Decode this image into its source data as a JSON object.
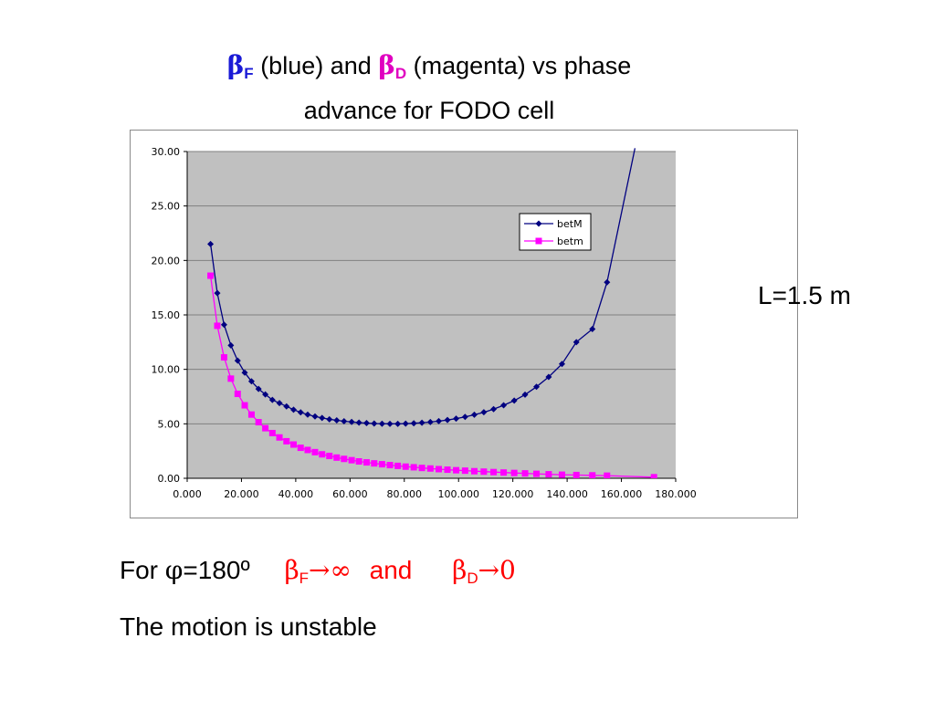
{
  "slide": {
    "title_beta_f_symbol": "β",
    "title_beta_f_sub": "F",
    "title_mid1": " (blue) and ",
    "title_beta_d_symbol": "β",
    "title_beta_d_sub": "D",
    "title_mid2": " (magenta) vs phase",
    "title_line2": "advance for FODO cell",
    "side_label": "L=1.5 m",
    "conclusion_prefix": "For ",
    "conclusion_phi": "φ",
    "conclusion_angle": "=180º",
    "conclusion_beta_f_symbol": "β",
    "conclusion_beta_f_sub": "F",
    "conclusion_beta_f_limit": "→∞",
    "conclusion_and": "and",
    "conclusion_beta_d_symbol": "β",
    "conclusion_beta_d_sub": "D",
    "conclusion_beta_d_limit": "→0",
    "statement": "The motion is unstable"
  },
  "colors": {
    "betM": "#000080",
    "betm": "#ff00ff",
    "plot_background": "#c0c0c0",
    "gridline": "#808080",
    "title_blue": "#1a1ad6",
    "title_magenta": "#e000c0",
    "conclusion_red": "#ff0000"
  },
  "chart_data": {
    "type": "line",
    "xlim": [
      0,
      180
    ],
    "ylim": [
      0,
      30
    ],
    "x_ticks": [
      "0.000",
      "20.000",
      "40.000",
      "60.000",
      "80.000",
      "100.000",
      "120.000",
      "140.000",
      "160.000",
      "180.000"
    ],
    "y_ticks": [
      "0.00",
      "5.00",
      "10.00",
      "15.00",
      "20.00",
      "25.00",
      "30.00"
    ],
    "grid": "horizontal",
    "legend_placement": "upper-right",
    "series": [
      {
        "name": "betM",
        "marker": "diamond",
        "x": [
          8.6,
          11.1,
          13.6,
          16.1,
          18.6,
          21.2,
          23.7,
          26.3,
          28.8,
          31.4,
          34.0,
          36.6,
          39.2,
          41.8,
          44.4,
          47.1,
          49.7,
          52.4,
          55.1,
          57.8,
          60.6,
          63.3,
          66.1,
          68.9,
          71.8,
          74.7,
          77.6,
          80.5,
          83.5,
          86.5,
          89.6,
          92.7,
          95.9,
          99.1,
          102.4,
          105.8,
          109.3,
          112.9,
          116.6,
          120.5,
          124.5,
          128.7,
          133.2,
          138.1,
          143.4,
          149.3,
          154.7,
          165.0
        ],
        "y": [
          21.5,
          17.0,
          14.1,
          12.2,
          10.8,
          9.7,
          8.9,
          8.2,
          7.7,
          7.2,
          6.9,
          6.6,
          6.3,
          6.05,
          5.85,
          5.68,
          5.54,
          5.42,
          5.32,
          5.24,
          5.17,
          5.11,
          5.07,
          5.03,
          5.01,
          5.0,
          5.0,
          5.02,
          5.05,
          5.1,
          5.16,
          5.25,
          5.35,
          5.48,
          5.64,
          5.83,
          6.06,
          6.35,
          6.7,
          7.13,
          7.68,
          8.4,
          9.3,
          10.5,
          12.5,
          13.7,
          18.0,
          30.3
        ]
      },
      {
        "name": "betm",
        "marker": "square",
        "x": [
          8.6,
          11.1,
          13.6,
          16.1,
          18.6,
          21.2,
          23.7,
          26.3,
          28.8,
          31.4,
          34.0,
          36.6,
          39.2,
          41.8,
          44.4,
          47.1,
          49.7,
          52.4,
          55.1,
          57.8,
          60.6,
          63.3,
          66.1,
          68.9,
          71.8,
          74.7,
          77.6,
          80.5,
          83.5,
          86.5,
          89.6,
          92.7,
          95.9,
          99.1,
          102.4,
          105.8,
          109.3,
          112.9,
          116.6,
          120.5,
          124.5,
          128.7,
          133.2,
          138.1,
          143.4,
          149.3,
          154.7,
          172.0
        ],
        "y": [
          18.6,
          14.0,
          11.1,
          9.15,
          7.75,
          6.7,
          5.85,
          5.15,
          4.6,
          4.15,
          3.75,
          3.4,
          3.1,
          2.8,
          2.6,
          2.4,
          2.2,
          2.05,
          1.9,
          1.78,
          1.66,
          1.55,
          1.46,
          1.37,
          1.29,
          1.21,
          1.14,
          1.07,
          1.01,
          0.95,
          0.9,
          0.84,
          0.79,
          0.74,
          0.7,
          0.65,
          0.61,
          0.57,
          0.53,
          0.49,
          0.45,
          0.41,
          0.37,
          0.33,
          0.3,
          0.27,
          0.24,
          0.1
        ]
      }
    ]
  }
}
